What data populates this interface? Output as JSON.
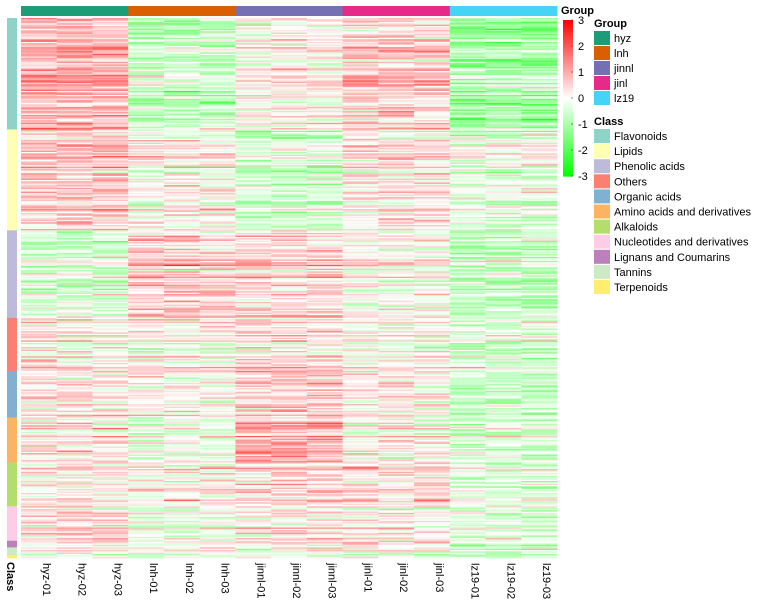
{
  "chart_data": {
    "type": "heatmap",
    "title": "",
    "columns": [
      "hyz-01",
      "hyz-02",
      "hyz-03",
      "lnh-01",
      "lnh-02",
      "lnh-03",
      "jinnl-01",
      "jinnl-02",
      "jinnl-03",
      "jinl-01",
      "jinl-02",
      "jinl-03",
      "lz19-01",
      "lz19-02",
      "lz19-03"
    ],
    "column_group_annotation": {
      "title": "Group",
      "assignments": [
        "hyz",
        "hyz",
        "hyz",
        "lnh",
        "lnh",
        "lnh",
        "jinnl",
        "jinnl",
        "jinnl",
        "jinl",
        "jinl",
        "jinl",
        "lz19",
        "lz19",
        "lz19"
      ]
    },
    "row_annotation": {
      "title": "Class",
      "segments": [
        {
          "class": "Flavonoids",
          "rows": 84
        },
        {
          "class": "Lipids",
          "rows": 76
        },
        {
          "class": "Phenolic acids",
          "rows": 66
        },
        {
          "class": "Others",
          "rows": 40
        },
        {
          "class": "Organic acids",
          "rows": 35
        },
        {
          "class": "Amino acids and derivatives",
          "rows": 34
        },
        {
          "class": "Alkaloids",
          "rows": 33
        },
        {
          "class": "Nucleotides and derivatives",
          "rows": 26
        },
        {
          "class": "Lignans and Coumarins",
          "rows": 5
        },
        {
          "class": "Tannins",
          "rows": 6
        },
        {
          "class": "Terpenoids",
          "rows": 2
        }
      ]
    },
    "color_scale": {
      "min": -3,
      "max": 3,
      "low_color": "#00ff00",
      "mid_color": "#ffffff",
      "high_color": "#ff0000",
      "ticks": [
        3,
        2,
        1,
        0,
        -1,
        -2,
        -3
      ]
    },
    "group_tendencies": [
      {
        "group": "hyz",
        "segment_means": {
          "Flavonoids": 0.9,
          "Lipids": 0.6,
          "Phenolic acids": -0.4,
          "Others": 0.2,
          "Organic acids": 0.3,
          "Amino acids and derivatives": 0.2,
          "Alkaloids": 0.1,
          "Nucleotides and derivatives": 0.5,
          "Lignans and Coumarins": 0.3,
          "Tannins": 0.2,
          "Terpenoids": 0.1
        }
      },
      {
        "group": "lnh",
        "segment_means": {
          "Flavonoids": -0.6,
          "Lipids": 0.1,
          "Phenolic acids": 0.6,
          "Others": 0.2,
          "Organic acids": 0.1,
          "Amino acids and derivatives": -0.3,
          "Alkaloids": 0.1,
          "Nucleotides and derivatives": -0.2,
          "Lignans and Coumarins": 0.0,
          "Tannins": 0.2,
          "Terpenoids": 0.0
        }
      },
      {
        "group": "jinnl",
        "segment_means": {
          "Flavonoids": 0.1,
          "Lipids": -0.5,
          "Phenolic acids": 0.5,
          "Others": 0.4,
          "Organic acids": 0.5,
          "Amino acids and derivatives": 0.9,
          "Alkaloids": 0.4,
          "Nucleotides and derivatives": 0.2,
          "Lignans and Coumarins": 0.3,
          "Tannins": -0.1,
          "Terpenoids": 0.1
        }
      },
      {
        "group": "jinl",
        "segment_means": {
          "Flavonoids": 0.6,
          "Lipids": 0.3,
          "Phenolic acids": 0.1,
          "Others": 0.1,
          "Organic acids": 0.2,
          "Amino acids and derivatives": 0.0,
          "Alkaloids": 0.3,
          "Nucleotides and derivatives": 0.1,
          "Lignans and Coumarins": 0.4,
          "Tannins": 0.1,
          "Terpenoids": 0.0
        }
      },
      {
        "group": "lz19",
        "segment_means": {
          "Flavonoids": -1.0,
          "Lipids": -0.2,
          "Phenolic acids": -0.6,
          "Others": -0.3,
          "Organic acids": -0.6,
          "Amino acids and derivatives": -0.5,
          "Alkaloids": -0.4,
          "Nucleotides and derivatives": -0.4,
          "Lignans and Coumarins": -0.6,
          "Tannins": -0.3,
          "Terpenoids": -0.2
        }
      }
    ],
    "legend": {
      "group_title": "Group",
      "groups": [
        {
          "name": "hyz",
          "color": "#1b9e77"
        },
        {
          "name": "lnh",
          "color": "#d95f02"
        },
        {
          "name": "jinnl",
          "color": "#7570b3"
        },
        {
          "name": "jinl",
          "color": "#e7298a"
        },
        {
          "name": "lz19",
          "color": "#45d4f5"
        }
      ],
      "class_title": "Class",
      "classes": [
        {
          "name": "Flavonoids",
          "color": "#8dd3c7"
        },
        {
          "name": "Lipids",
          "color": "#ffffb3"
        },
        {
          "name": "Phenolic acids",
          "color": "#bebada"
        },
        {
          "name": "Others",
          "color": "#fb8072"
        },
        {
          "name": "Organic acids",
          "color": "#80b1d3"
        },
        {
          "name": "Amino acids and derivatives",
          "color": "#fdb462"
        },
        {
          "name": "Alkaloids",
          "color": "#b3de69"
        },
        {
          "name": "Nucleotides and derivatives",
          "color": "#fccde5"
        },
        {
          "name": "Lignans and Coumarins",
          "color": "#bc80bd"
        },
        {
          "name": "Tannins",
          "color": "#ccebc5"
        },
        {
          "name": "Terpenoids",
          "color": "#ffed6f"
        }
      ]
    },
    "group_annotation_label": "Group",
    "class_annotation_label": "Class"
  }
}
